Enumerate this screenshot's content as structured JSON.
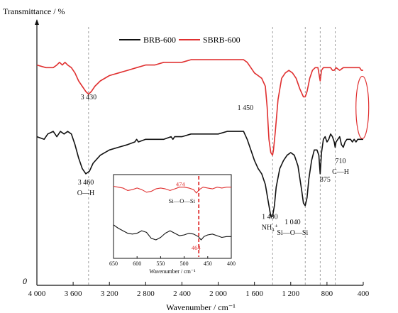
{
  "chart_data": [
    {
      "type": "line",
      "title": "",
      "ylabel": "Transmittance / %",
      "xlabel": "Wavenumber / cm⁻¹",
      "origin_label": "0",
      "xlim": [
        4000,
        400
      ],
      "x_ticks": [
        4000,
        3600,
        3200,
        2800,
        2400,
        2000,
        1600,
        1200,
        800,
        400
      ],
      "x_tick_labels": [
        "4 000",
        "3 600",
        "3 200",
        "2 800",
        "2 400",
        "2 000",
        "1 600",
        "1 200",
        "800",
        "400"
      ],
      "ylim": [
        0,
        100
      ],
      "grid": false,
      "legend": {
        "placement": "top-center"
      },
      "series": [
        {
          "name": "BRB-600",
          "color": "#111111",
          "points": [
            [
              4000,
              56
            ],
            [
              3920,
              55
            ],
            [
              3880,
              57
            ],
            [
              3820,
              58
            ],
            [
              3780,
              56
            ],
            [
              3740,
              58
            ],
            [
              3700,
              57
            ],
            [
              3660,
              58
            ],
            [
              3620,
              57
            ],
            [
              3580,
              53
            ],
            [
              3540,
              48
            ],
            [
              3500,
              44
            ],
            [
              3460,
              42
            ],
            [
              3420,
              43
            ],
            [
              3380,
              46
            ],
            [
              3300,
              49
            ],
            [
              3200,
              51
            ],
            [
              3100,
              52
            ],
            [
              3000,
              53
            ],
            [
              2920,
              54
            ],
            [
              2900,
              55
            ],
            [
              2880,
              54
            ],
            [
              2800,
              55
            ],
            [
              2700,
              55
            ],
            [
              2600,
              55
            ],
            [
              2520,
              56
            ],
            [
              2500,
              55
            ],
            [
              2480,
              56
            ],
            [
              2400,
              56
            ],
            [
              2300,
              57
            ],
            [
              2200,
              57
            ],
            [
              2100,
              57
            ],
            [
              2000,
              57
            ],
            [
              1900,
              58
            ],
            [
              1800,
              58
            ],
            [
              1720,
              58
            ],
            [
              1680,
              55
            ],
            [
              1640,
              51
            ],
            [
              1600,
              47
            ],
            [
              1560,
              44
            ],
            [
              1520,
              42
            ],
            [
              1480,
              38
            ],
            [
              1450,
              32
            ],
            [
              1420,
              26
            ],
            [
              1400,
              26
            ],
            [
              1380,
              30
            ],
            [
              1360,
              37
            ],
            [
              1320,
              44
            ],
            [
              1280,
              47
            ],
            [
              1240,
              49
            ],
            [
              1200,
              50
            ],
            [
              1160,
              49
            ],
            [
              1120,
              45
            ],
            [
              1080,
              36
            ],
            [
              1060,
              31
            ],
            [
              1040,
              30
            ],
            [
              1020,
              33
            ],
            [
              1000,
              40
            ],
            [
              970,
              47
            ],
            [
              940,
              51
            ],
            [
              910,
              51
            ],
            [
              890,
              49
            ],
            [
              875,
              42
            ],
            [
              860,
              50
            ],
            [
              840,
              55
            ],
            [
              820,
              56
            ],
            [
              800,
              54
            ],
            [
              780,
              55
            ],
            [
              760,
              57
            ],
            [
              740,
              56
            ],
            [
              720,
              54
            ],
            [
              710,
              52
            ],
            [
              700,
              54
            ],
            [
              680,
              55
            ],
            [
              660,
              56
            ],
            [
              640,
              53
            ],
            [
              620,
              52
            ],
            [
              600,
              54
            ],
            [
              580,
              55
            ],
            [
              560,
              55
            ],
            [
              540,
              55
            ],
            [
              520,
              54
            ],
            [
              500,
              55
            ],
            [
              480,
              54
            ],
            [
              460,
              55
            ],
            [
              440,
              55
            ],
            [
              420,
              55
            ],
            [
              400,
              55
            ]
          ]
        },
        {
          "name": "SBRB-600",
          "color": "#e03030",
          "points": [
            [
              4000,
              83
            ],
            [
              3900,
              82
            ],
            [
              3820,
              82
            ],
            [
              3780,
              83
            ],
            [
              3750,
              84
            ],
            [
              3720,
              83
            ],
            [
              3690,
              84
            ],
            [
              3660,
              83
            ],
            [
              3620,
              82
            ],
            [
              3580,
              80
            ],
            [
              3540,
              77
            ],
            [
              3500,
              75
            ],
            [
              3460,
              73
            ],
            [
              3430,
              72
            ],
            [
              3400,
              73
            ],
            [
              3360,
              75
            ],
            [
              3300,
              77
            ],
            [
              3200,
              79
            ],
            [
              3100,
              80
            ],
            [
              3000,
              81
            ],
            [
              2900,
              82
            ],
            [
              2800,
              83
            ],
            [
              2700,
              83
            ],
            [
              2600,
              84
            ],
            [
              2500,
              84
            ],
            [
              2400,
              84
            ],
            [
              2300,
              85
            ],
            [
              2200,
              85
            ],
            [
              2100,
              85
            ],
            [
              2000,
              85
            ],
            [
              1900,
              85
            ],
            [
              1800,
              85
            ],
            [
              1720,
              85
            ],
            [
              1680,
              84
            ],
            [
              1640,
              82
            ],
            [
              1600,
              80
            ],
            [
              1560,
              79
            ],
            [
              1520,
              78
            ],
            [
              1480,
              75
            ],
            [
              1460,
              67
            ],
            [
              1450,
              61
            ],
            [
              1440,
              55
            ],
            [
              1420,
              50
            ],
            [
              1400,
              49
            ],
            [
              1390,
              51
            ],
            [
              1370,
              58
            ],
            [
              1340,
              70
            ],
            [
              1300,
              78
            ],
            [
              1260,
              80
            ],
            [
              1220,
              81
            ],
            [
              1180,
              80
            ],
            [
              1140,
              78
            ],
            [
              1100,
              74
            ],
            [
              1060,
              71
            ],
            [
              1040,
              71
            ],
            [
              1020,
              73
            ],
            [
              990,
              78
            ],
            [
              960,
              81
            ],
            [
              930,
              82
            ],
            [
              900,
              82
            ],
            [
              890,
              80
            ],
            [
              875,
              77
            ],
            [
              860,
              81
            ],
            [
              840,
              82
            ],
            [
              800,
              82
            ],
            [
              760,
              82
            ],
            [
              740,
              81
            ],
            [
              720,
              81
            ],
            [
              700,
              82
            ],
            [
              660,
              81
            ],
            [
              620,
              82
            ],
            [
              580,
              82
            ],
            [
              540,
              82
            ],
            [
              500,
              82
            ],
            [
              460,
              82
            ],
            [
              440,
              82
            ],
            [
              420,
              81
            ],
            [
              400,
              81
            ]
          ]
        }
      ],
      "reference_lines_x": [
        3430,
        1400,
        1040,
        875,
        710
      ],
      "annotations": [
        {
          "text": "3 430",
          "x": 3430,
          "y": 70
        },
        {
          "text": "3 460",
          "x": 3460,
          "y": 38
        },
        {
          "text": "O—H",
          "x": 3460,
          "y": 34
        },
        {
          "text": "1 450",
          "x": 1700,
          "y": 66
        },
        {
          "text": "1 400",
          "x": 1430,
          "y": 25
        },
        {
          "text": "NH₄⁺",
          "x": 1430,
          "y": 21
        },
        {
          "text": "1 040",
          "x": 1180,
          "y": 23
        },
        {
          "text": "Si—O—Si",
          "x": 1180,
          "y": 19
        },
        {
          "text": "875",
          "x": 820,
          "y": 39
        },
        {
          "text": "710",
          "x": 650,
          "y": 46
        },
        {
          "text": "C—H",
          "x": 650,
          "y": 42
        }
      ],
      "highlight_ellipse": {
        "x_center": 410,
        "y_center": 67,
        "color": "#e03030"
      }
    },
    {
      "type": "line",
      "title": "",
      "ylabel": "",
      "xlabel": "Wavenumber / cm⁻¹",
      "xlim": [
        650,
        400
      ],
      "x_ticks": [
        650,
        600,
        550,
        500,
        450,
        400
      ],
      "x_tick_labels": [
        "650",
        "600",
        "550",
        "500",
        "450",
        "400"
      ],
      "ylim": [
        0,
        100
      ],
      "series": [
        {
          "name": "",
          "color": "#e03030",
          "points": [
            [
              650,
              86
            ],
            [
              640,
              85
            ],
            [
              630,
              84
            ],
            [
              620,
              81
            ],
            [
              610,
              82
            ],
            [
              600,
              84
            ],
            [
              590,
              82
            ],
            [
              580,
              79
            ],
            [
              570,
              80
            ],
            [
              560,
              83
            ],
            [
              550,
              84
            ],
            [
              540,
              83
            ],
            [
              530,
              81
            ],
            [
              520,
              83
            ],
            [
              510,
              85
            ],
            [
              500,
              85
            ],
            [
              490,
              84
            ],
            [
              480,
              82
            ],
            [
              474,
              78
            ],
            [
              468,
              82
            ],
            [
              460,
              85
            ],
            [
              450,
              84
            ],
            [
              440,
              83
            ],
            [
              430,
              85
            ],
            [
              420,
              84
            ],
            [
              410,
              85
            ],
            [
              400,
              85
            ]
          ]
        },
        {
          "name": "",
          "color": "#111111",
          "points": [
            [
              650,
              40
            ],
            [
              640,
              36
            ],
            [
              630,
              33
            ],
            [
              620,
              30
            ],
            [
              610,
              29
            ],
            [
              600,
              30
            ],
            [
              590,
              33
            ],
            [
              580,
              31
            ],
            [
              570,
              24
            ],
            [
              560,
              22
            ],
            [
              550,
              25
            ],
            [
              540,
              30
            ],
            [
              530,
              33
            ],
            [
              520,
              30
            ],
            [
              510,
              27
            ],
            [
              500,
              28
            ],
            [
              490,
              30
            ],
            [
              480,
              29
            ],
            [
              470,
              26
            ],
            [
              464,
              22
            ],
            [
              458,
              26
            ],
            [
              450,
              28
            ],
            [
              440,
              29
            ],
            [
              430,
              27
            ],
            [
              420,
              25
            ],
            [
              410,
              26
            ],
            [
              400,
              26
            ]
          ]
        }
      ],
      "reference_line_x": 469,
      "annotations": [
        {
          "text": "474",
          "x": 508,
          "y": 86,
          "color": "#e03030"
        },
        {
          "text": "Si—O—Si",
          "x": 505,
          "y": 66
        },
        {
          "text": "464",
          "x": 475,
          "y": 10,
          "color": "#e03030"
        }
      ]
    }
  ]
}
